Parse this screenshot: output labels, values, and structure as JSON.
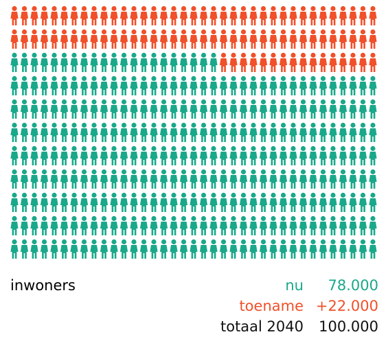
{
  "chart_data": {
    "type": "pictogram",
    "label": "inwoners",
    "series": [
      {
        "name": "nu",
        "value": 78000,
        "value_label": "78.000",
        "color": "#1aa88a"
      },
      {
        "name": "toename",
        "value": 22000,
        "value_label": "+22.000",
        "color": "#f0502a"
      }
    ],
    "total": {
      "name": "totaal 2040",
      "value": 100000,
      "value_label": "100.000",
      "color": "#111111"
    }
  }
}
